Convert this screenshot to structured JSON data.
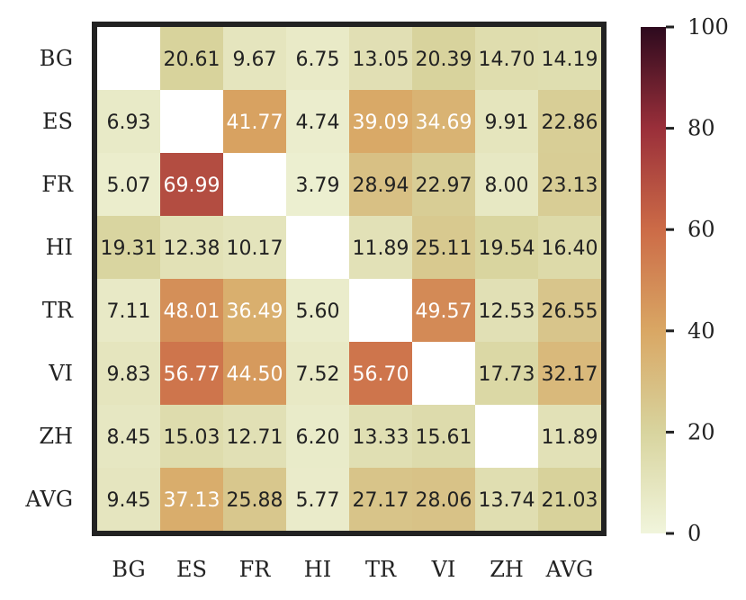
{
  "chart_data": {
    "type": "heatmap",
    "title": "",
    "xlabel": "",
    "ylabel": "",
    "x_categories": [
      "BG",
      "ES",
      "FR",
      "HI",
      "TR",
      "VI",
      "ZH",
      "AVG"
    ],
    "y_categories": [
      "BG",
      "ES",
      "FR",
      "HI",
      "TR",
      "VI",
      "ZH",
      "AVG"
    ],
    "values": [
      [
        null,
        20.61,
        9.67,
        6.75,
        13.05,
        20.39,
        14.7,
        14.19
      ],
      [
        6.93,
        null,
        41.77,
        4.74,
        39.09,
        34.69,
        9.91,
        22.86
      ],
      [
        5.07,
        69.99,
        null,
        3.79,
        28.94,
        22.97,
        8.0,
        23.13
      ],
      [
        19.31,
        12.38,
        10.17,
        null,
        11.89,
        25.11,
        19.54,
        16.4
      ],
      [
        7.11,
        48.01,
        36.49,
        5.6,
        null,
        49.57,
        12.53,
        26.55
      ],
      [
        9.83,
        56.77,
        44.5,
        7.52,
        56.7,
        null,
        17.73,
        32.17
      ],
      [
        8.45,
        15.03,
        12.71,
        6.2,
        13.33,
        15.61,
        null,
        11.89
      ],
      [
        9.45,
        37.13,
        25.88,
        5.77,
        27.17,
        28.06,
        13.74,
        21.03
      ]
    ],
    "value_range": [
      0,
      100
    ],
    "colorbar_ticks": [
      0,
      20,
      40,
      60,
      80,
      100
    ],
    "colormap": [
      "#f1f5dc",
      "#d8d49e",
      "#d9a764",
      "#cc6b47",
      "#9a2f3a",
      "#2d0a1e"
    ],
    "grid": false
  }
}
